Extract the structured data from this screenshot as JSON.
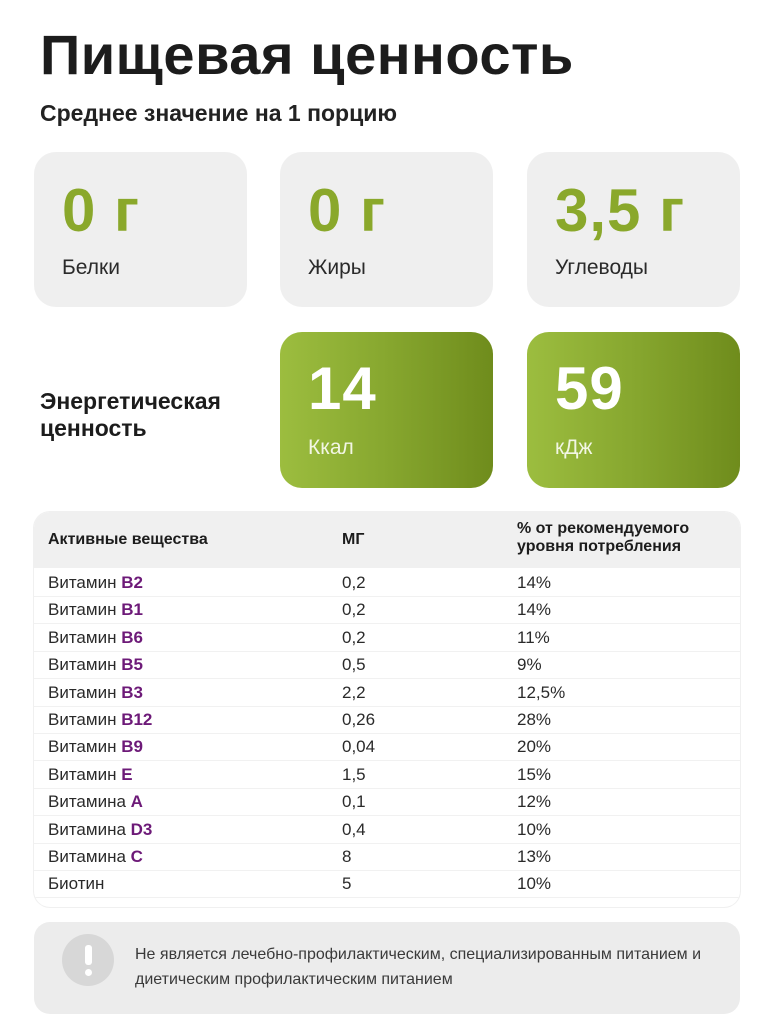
{
  "title": "Пищевая ценность",
  "subtitle": "Среднее значение на 1 порцию",
  "macros": [
    {
      "value": "0 г",
      "label": "Белки"
    },
    {
      "value": "0 г",
      "label": "Жиры"
    },
    {
      "value": "3,5 г",
      "label": "Углеводы"
    }
  ],
  "energy": {
    "label": "Энергетическая ценность",
    "kcal": {
      "value": "14",
      "unit": "Ккал"
    },
    "kj": {
      "value": "59",
      "unit": "кДж"
    }
  },
  "table": {
    "headers": [
      "Активные вещества",
      "МГ",
      "% от рекомендуемого уровня потребления"
    ],
    "rows": [
      {
        "prefix": "Витамин ",
        "name": "B2",
        "mg": "0,2",
        "pct": "14%"
      },
      {
        "prefix": "Витамин ",
        "name": "B1",
        "mg": "0,2",
        "pct": "14%"
      },
      {
        "prefix": "Витамин ",
        "name": "B6",
        "mg": "0,2",
        "pct": "11%"
      },
      {
        "prefix": "Витамин ",
        "name": "B5",
        "mg": "0,5",
        "pct": "9%"
      },
      {
        "prefix": "Витамин ",
        "name": "B3",
        "mg": "2,2",
        "pct": "12,5%"
      },
      {
        "prefix": "Витамин ",
        "name": "B12",
        "mg": "0,26",
        "pct": "28%"
      },
      {
        "prefix": "Витамин ",
        "name": "B9",
        "mg": "0,04",
        "pct": "20%"
      },
      {
        "prefix": "Витамин ",
        "name": "E",
        "mg": "1,5",
        "pct": "15%"
      },
      {
        "prefix": "Витамина ",
        "name": "A",
        "mg": "0,1",
        "pct": "12%"
      },
      {
        "prefix": "Витамина ",
        "name": "D3",
        "mg": "0,4",
        "pct": "10%"
      },
      {
        "prefix": "Витамина ",
        "name": "C",
        "mg": "8",
        "pct": "13%"
      },
      {
        "prefix": "Биотин",
        "name": "",
        "mg": "5",
        "pct": "10%"
      }
    ]
  },
  "notice": {
    "icon": "exclamation-icon",
    "text": "Не является лечебно-профилактическим, специализированным питанием и диетическим профилактическим питанием"
  },
  "colors": {
    "accent_green": "#8aa82b",
    "vitamin_purple": "#6d1a78",
    "card_gray": "#efefef"
  }
}
